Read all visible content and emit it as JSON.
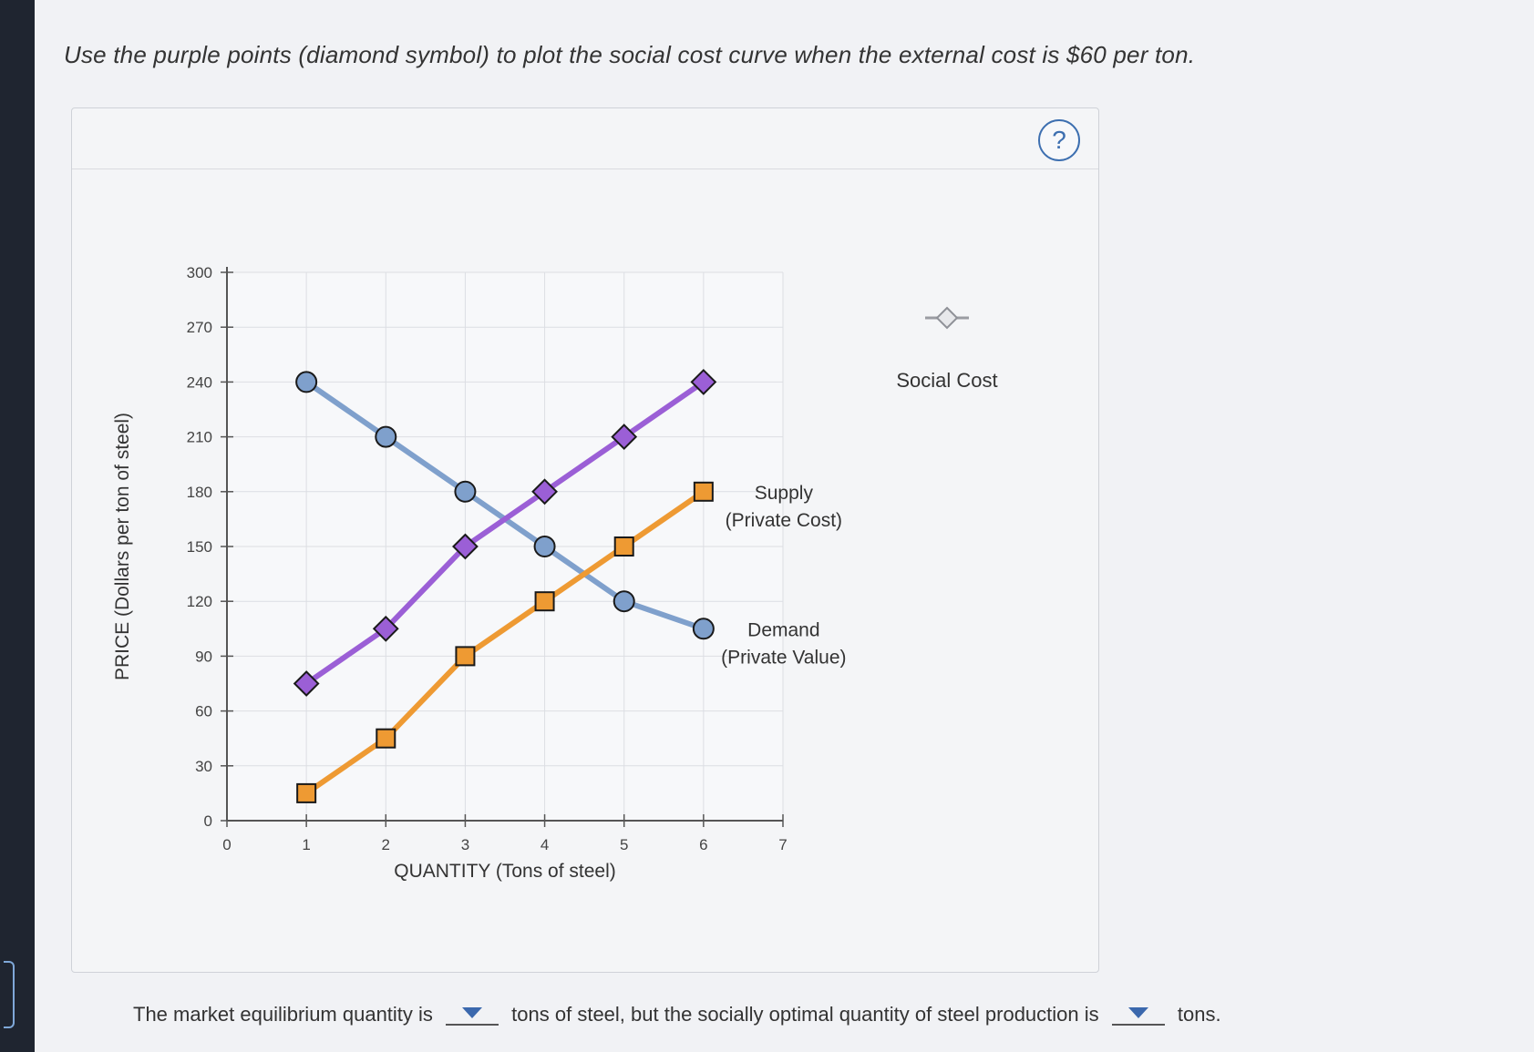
{
  "instruction": "Use the purple points (diamond symbol) to plot the social cost curve when the external cost is $60 per ton.",
  "help_label": "?",
  "palette_label": "Social Cost",
  "colors": {
    "demand": "#7fa0cc",
    "supply": "#ee9a33",
    "social_cost": "#9b5fd6",
    "marker_outline": "#1a1a1a"
  },
  "chart_data": {
    "type": "line",
    "xlabel": "QUANTITY (Tons of steel)",
    "ylabel": "PRICE (Dollars per ton of steel)",
    "xlim": [
      0,
      7
    ],
    "ylim": [
      0,
      300
    ],
    "x_ticks": [
      0,
      1,
      2,
      3,
      4,
      5,
      6,
      7
    ],
    "y_ticks": [
      0,
      30,
      60,
      90,
      120,
      150,
      180,
      210,
      240,
      270,
      300
    ],
    "grid": true,
    "series": [
      {
        "name": "Demand (Private Value)",
        "label_lines": [
          "Demand",
          "(Private Value)"
        ],
        "marker": "circle",
        "color_key": "demand",
        "x": [
          1,
          2,
          3,
          4,
          5,
          6
        ],
        "y": [
          240,
          210,
          180,
          150,
          120,
          105
        ]
      },
      {
        "name": "Supply (Private Cost)",
        "label_lines": [
          "Supply",
          "(Private Cost)"
        ],
        "marker": "square",
        "color_key": "supply",
        "x": [
          1,
          2,
          3,
          4,
          5,
          6
        ],
        "y": [
          15,
          45,
          90,
          120,
          150,
          180
        ]
      },
      {
        "name": "Social Cost",
        "label_lines": [],
        "marker": "diamond",
        "color_key": "social_cost",
        "x": [
          1,
          2,
          3,
          4,
          5,
          6
        ],
        "y": [
          75,
          105,
          150,
          180,
          210,
          240
        ]
      }
    ]
  },
  "question": {
    "part1": "The market equilibrium quantity is",
    "part2": "tons of steel, but the socially optimal quantity of steel production is",
    "part3": "tons."
  }
}
